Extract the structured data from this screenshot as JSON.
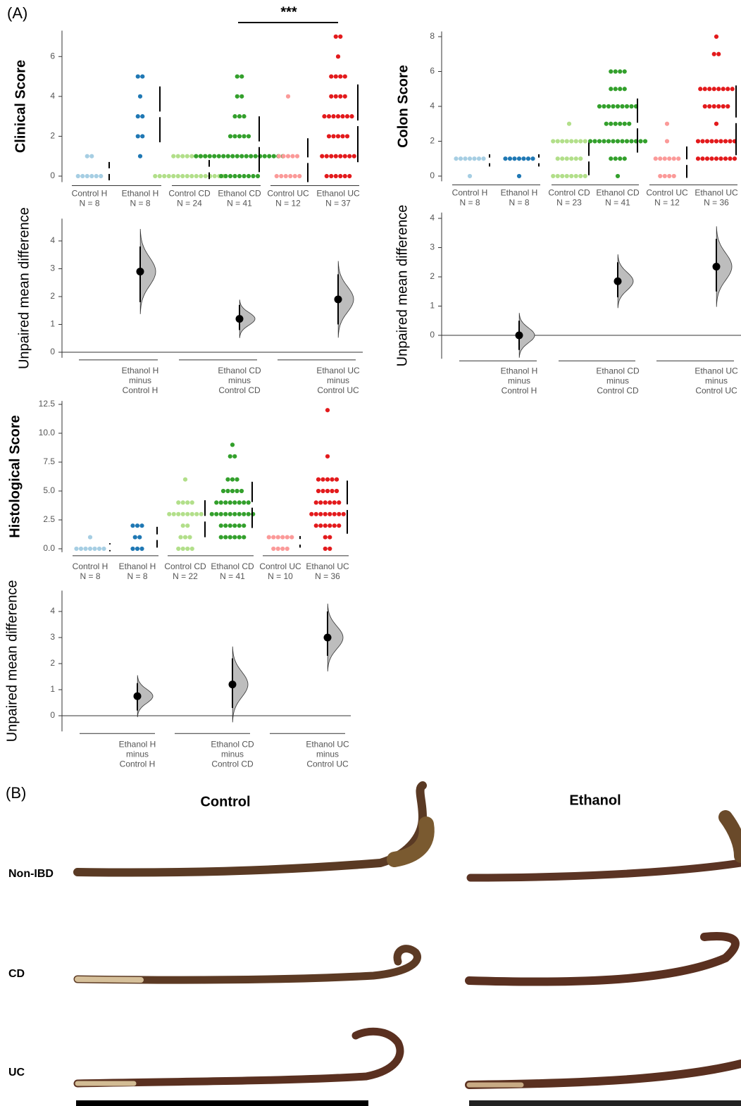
{
  "chart_data": [
    {
      "type": "estimation",
      "ylabel": "Clinical Score",
      "ylim": [
        -0.3,
        7.3
      ],
      "yticks": [
        0,
        2,
        4,
        6
      ],
      "significance": {
        "label": "***",
        "groups": [
          3,
          5
        ]
      },
      "groups": [
        {
          "name": "Control H",
          "n_label": "N = 8",
          "color": "#a6cee3",
          "values": [
            1,
            1,
            0,
            0,
            0,
            0,
            0,
            0
          ],
          "mean": 0.25,
          "sd": 0.46
        },
        {
          "name": "Ethanol H",
          "n_label": "N = 8",
          "color": "#1f78b4",
          "values": [
            5,
            5,
            4,
            3,
            3,
            2,
            2,
            1
          ],
          "mean": 3.1,
          "sd": 1.4
        },
        {
          "name": "Control CD",
          "n_label": "N = 24",
          "color": "#b2df8a",
          "values": [
            1,
            1,
            1,
            1,
            1,
            1,
            1,
            1,
            0,
            0,
            0,
            0,
            0,
            0,
            0,
            0,
            0,
            0,
            0,
            0,
            0,
            0,
            0,
            0
          ],
          "mean": 0.33,
          "sd": 0.48
        },
        {
          "name": "Ethanol CD",
          "n_label": "N = 41",
          "color": "#33a02c",
          "values": [
            5,
            5,
            4,
            4,
            3,
            3,
            3,
            2,
            2,
            2,
            2,
            2,
            1,
            1,
            1,
            1,
            1,
            1,
            1,
            1,
            1,
            1,
            1,
            1,
            1,
            1,
            1,
            1,
            1,
            1,
            1,
            1,
            0,
            0,
            0,
            0,
            0,
            0,
            0,
            0,
            0
          ],
          "mean": 1.6,
          "sd": 1.4
        },
        {
          "name": "Control UC",
          "n_label": "N = 12",
          "color": "#fb9a99",
          "values": [
            4,
            1,
            1,
            1,
            1,
            1,
            0,
            0,
            0,
            0,
            0,
            0
          ],
          "mean": 0.8,
          "sd": 1.1
        },
        {
          "name": "Ethanol UC",
          "n_label": "N = 37",
          "color": "#e31a1c",
          "values": [
            7,
            7,
            6,
            5,
            5,
            5,
            5,
            4,
            4,
            4,
            4,
            3,
            3,
            3,
            3,
            3,
            3,
            3,
            2,
            2,
            2,
            2,
            2,
            1,
            1,
            1,
            1,
            1,
            1,
            1,
            1,
            0,
            0,
            0,
            0,
            0,
            0
          ],
          "mean": 2.65,
          "sd": 1.95
        }
      ],
      "diff": {
        "ylabel": "Unpaired mean difference",
        "ylim": [
          -0.2,
          4.8
        ],
        "yticks": [
          0,
          1,
          2,
          3,
          4
        ],
        "labels": [
          [
            "Ethanol H",
            "minus",
            "Control H"
          ],
          [
            "Ethanol CD",
            "minus",
            "Control CD"
          ],
          [
            "Ethanol UC",
            "minus",
            "Control UC"
          ]
        ],
        "values": [
          2.9,
          1.2,
          1.9
        ],
        "ci": [
          [
            1.8,
            3.8
          ],
          [
            0.8,
            1.7
          ],
          [
            1.0,
            2.8
          ]
        ]
      }
    },
    {
      "type": "estimation",
      "ylabel": "Colon Score",
      "ylim": [
        -0.3,
        8.3
      ],
      "yticks": [
        0,
        2,
        4,
        6,
        8
      ],
      "groups": [
        {
          "name": "Control H",
          "n_label": "N = 8",
          "color": "#a6cee3",
          "values": [
            1,
            1,
            1,
            1,
            1,
            1,
            1,
            0
          ],
          "mean": 0.9,
          "sd": 0.35
        },
        {
          "name": "Ethanol H",
          "n_label": "N = 8",
          "color": "#1f78b4",
          "values": [
            1,
            1,
            1,
            1,
            1,
            1,
            1,
            0
          ],
          "mean": 0.9,
          "sd": 0.35
        },
        {
          "name": "Control CD",
          "n_label": "N = 23",
          "color": "#b2df8a",
          "values": [
            3,
            2,
            2,
            2,
            2,
            2,
            2,
            2,
            2,
            1,
            1,
            1,
            1,
            1,
            1,
            0,
            0,
            0,
            0,
            0,
            0,
            0,
            0
          ],
          "mean": 1.0,
          "sd": 0.95
        },
        {
          "name": "Ethanol CD",
          "n_label": "N = 41",
          "color": "#33a02c",
          "values": [
            6,
            6,
            6,
            6,
            5,
            5,
            5,
            5,
            4,
            4,
            4,
            4,
            4,
            4,
            4,
            4,
            4,
            3,
            3,
            3,
            3,
            3,
            3,
            2,
            2,
            2,
            2,
            2,
            2,
            2,
            2,
            2,
            2,
            2,
            2,
            2,
            1,
            1,
            1,
            1,
            0
          ],
          "mean": 2.9,
          "sd": 1.55
        },
        {
          "name": "Control UC",
          "n_label": "N = 12",
          "color": "#fb9a99",
          "values": [
            3,
            2,
            1,
            1,
            1,
            1,
            1,
            1,
            0,
            0,
            0,
            0
          ],
          "mean": 0.8,
          "sd": 0.9
        },
        {
          "name": "Ethanol UC",
          "n_label": "N = 36",
          "color": "#e31a1c",
          "values": [
            8,
            7,
            7,
            5,
            5,
            5,
            5,
            5,
            5,
            5,
            5,
            4,
            4,
            4,
            4,
            4,
            4,
            3,
            2,
            2,
            2,
            2,
            2,
            2,
            2,
            2,
            2,
            1,
            1,
            1,
            1,
            1,
            1,
            1,
            1,
            1
          ],
          "mean": 3.2,
          "sd": 2.0
        }
      ],
      "diff": {
        "ylabel": "Unpaired mean difference",
        "ylim": [
          -0.8,
          4.2
        ],
        "yticks": [
          0,
          1,
          2,
          3,
          4
        ],
        "labels": [
          [
            "Ethanol H",
            "minus",
            "Control H"
          ],
          [
            "Ethanol CD",
            "minus",
            "Control CD"
          ],
          [
            "Ethanol UC",
            "minus",
            "Control UC"
          ]
        ],
        "values": [
          0.0,
          1.85,
          2.35
        ],
        "ci": [
          [
            -0.5,
            0.5
          ],
          [
            1.3,
            2.5
          ],
          [
            1.5,
            3.3
          ]
        ]
      }
    },
    {
      "type": "estimation",
      "ylabel": "Histological Score",
      "ylim": [
        -0.3,
        12.8
      ],
      "yticks": [
        {
          "value": 0,
          "label": "0.0"
        },
        2.5,
        {
          "value": 5,
          "label": "5.0"
        },
        7.5,
        {
          "value": 10,
          "label": "10.0"
        },
        12.5
      ],
      "groups": [
        {
          "name": "Control H",
          "n_label": "N = 8",
          "color": "#a6cee3",
          "values": [
            1,
            0,
            0,
            0,
            0,
            0,
            0,
            0
          ],
          "mean": 0.13,
          "sd": 0.35
        },
        {
          "name": "Ethanol H",
          "n_label": "N = 8",
          "color": "#1f78b4",
          "values": [
            2,
            2,
            2,
            1,
            1,
            0,
            0,
            0
          ],
          "mean": 1.0,
          "sd": 0.9
        },
        {
          "name": "Control CD",
          "n_label": "N = 22",
          "color": "#b2df8a",
          "values": [
            6,
            4,
            4,
            4,
            4,
            3,
            3,
            3,
            3,
            3,
            3,
            3,
            3,
            2,
            2,
            1,
            1,
            1,
            0,
            0,
            0,
            0
          ],
          "mean": 2.6,
          "sd": 1.6
        },
        {
          "name": "Ethanol CD",
          "n_label": "N = 41",
          "color": "#33a02c",
          "values": [
            9,
            8,
            8,
            6,
            6,
            6,
            5,
            5,
            5,
            5,
            5,
            4,
            4,
            4,
            4,
            4,
            4,
            4,
            4,
            3,
            3,
            3,
            3,
            3,
            3,
            3,
            3,
            3,
            3,
            2,
            2,
            2,
            2,
            2,
            2,
            1,
            1,
            1,
            1,
            1,
            1
          ],
          "mean": 3.8,
          "sd": 2.0
        },
        {
          "name": "Control UC",
          "n_label": "N = 10",
          "color": "#fb9a99",
          "values": [
            1,
            1,
            1,
            1,
            1,
            1,
            0,
            0,
            0,
            0
          ],
          "mean": 0.6,
          "sd": 0.5
        },
        {
          "name": "Ethanol UC",
          "n_label": "N = 36",
          "color": "#e31a1c",
          "values": [
            12,
            8,
            6,
            6,
            6,
            6,
            6,
            5,
            5,
            5,
            5,
            5,
            4,
            4,
            4,
            4,
            4,
            4,
            3,
            3,
            3,
            3,
            3,
            3,
            3,
            3,
            2,
            2,
            2,
            2,
            2,
            2,
            1,
            1,
            0,
            0
          ],
          "mean": 3.6,
          "sd": 2.3
        }
      ],
      "diff": {
        "ylabel": "Unpaired mean difference",
        "ylim": [
          -0.6,
          4.8
        ],
        "yticks": [
          0,
          1,
          2,
          3,
          4
        ],
        "labels": [
          [
            "Ethanol H",
            "minus",
            "Control H"
          ],
          [
            "Ethanol CD",
            "minus",
            "Control CD"
          ],
          [
            "Ethanol UC",
            "minus",
            "Control UC"
          ]
        ],
        "values": [
          0.75,
          1.2,
          3.0
        ],
        "ci": [
          [
            0.2,
            1.25
          ],
          [
            0.3,
            2.2
          ],
          [
            2.3,
            4.0
          ]
        ]
      }
    }
  ],
  "figure": {
    "label_a": "(A)",
    "label_b": "(B)",
    "columns": [
      "Control",
      "Ethanol"
    ],
    "rows": [
      "Non-IBD",
      "CD",
      "UC"
    ]
  }
}
